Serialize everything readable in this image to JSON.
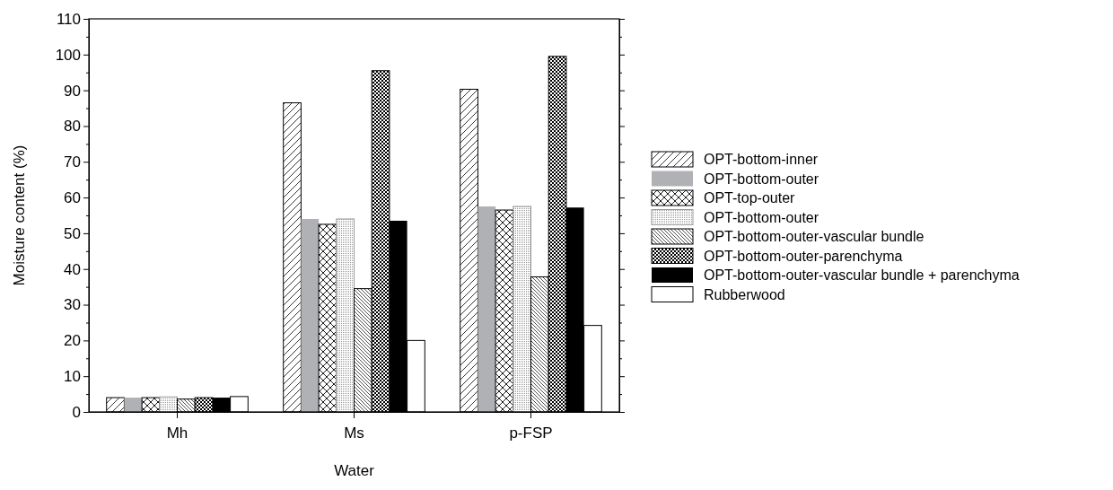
{
  "chart_data": {
    "type": "bar",
    "xlabel": "Water",
    "ylabel": "Moisture content (%)",
    "categories": [
      "Mh",
      "Ms",
      "p-FSP"
    ],
    "ylim": [
      0,
      110
    ],
    "yticks": [
      0,
      10,
      20,
      30,
      40,
      50,
      60,
      70,
      80,
      90,
      100,
      110
    ],
    "legend": "right",
    "series": [
      {
        "name": "OPT-bottom-inner",
        "color": "#000000",
        "values": [
          4,
          86.5,
          90.3
        ]
      },
      {
        "name": "OPT-bottom-outer",
        "color": "#b0b1b4",
        "values": [
          4,
          54,
          57.5
        ]
      },
      {
        "name": "OPT-top-outer",
        "color": "#000000",
        "values": [
          4,
          52.5,
          56.5
        ]
      },
      {
        "name": "OPT-bottom-outer",
        "color": "#999999",
        "values": [
          4.2,
          54,
          57.5
        ]
      },
      {
        "name": "OPT-bottom-outer-vascular bundle",
        "color": "#000000",
        "values": [
          3.6,
          34.5,
          37.8
        ]
      },
      {
        "name": "OPT-bottom-outer-parenchyma",
        "color": "#000000",
        "values": [
          4,
          95.5,
          99.5
        ]
      },
      {
        "name": "OPT-bottom-outer-vascular bundle + parenchyma",
        "color": "#000000",
        "values": [
          4,
          53.5,
          57.2
        ]
      },
      {
        "name": "Rubberwood",
        "color": "#ffffff",
        "values": [
          4.3,
          20,
          24.2
        ]
      }
    ]
  }
}
